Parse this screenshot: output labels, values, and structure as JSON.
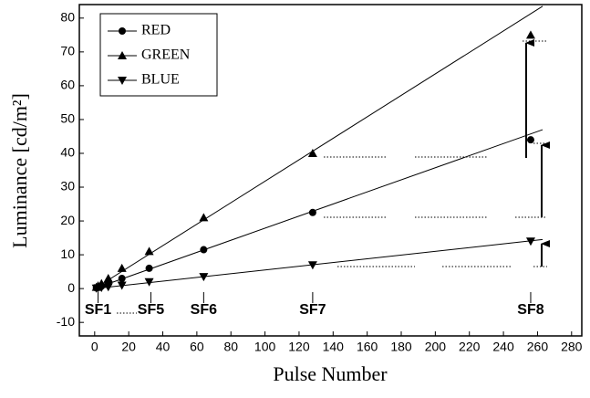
{
  "chart_data": {
    "type": "scatter",
    "x_label": "Pulse Number",
    "y_label": "Luminance [cd/m²]",
    "x": [
      1,
      2,
      4,
      8,
      16,
      32,
      64,
      128,
      256
    ],
    "series": [
      {
        "name": "RED",
        "color": "#000000",
        "marker": "circle",
        "values": [
          0.2,
          0.4,
          0.7,
          1.4,
          3,
          6,
          11.5,
          22.5,
          44
        ]
      },
      {
        "name": "GREEN",
        "color": "#000000",
        "marker": "triangle-up",
        "values": [
          0.4,
          0.8,
          1.5,
          3,
          6,
          11,
          21,
          40,
          75
        ]
      },
      {
        "name": "BLUE",
        "color": "#000000",
        "marker": "triangle-down",
        "values": [
          0.1,
          0.2,
          0.3,
          0.5,
          1,
          2,
          3.5,
          7,
          14
        ]
      }
    ],
    "fit_lines": {
      "x": [
        0,
        263
      ],
      "series": [
        {
          "values": [
            0,
            47
          ]
        },
        {
          "values": [
            0,
            83.5
          ]
        },
        {
          "values": [
            0,
            14.5
          ]
        }
      ]
    },
    "annotations": [
      {
        "text": "SF1",
        "x": 2
      },
      {
        "text": "SF5",
        "x": 33
      },
      {
        "text": "SF6",
        "x": 64
      },
      {
        "text": "SF7",
        "x": 128
      },
      {
        "text": "SF8",
        "x": 256
      }
    ],
    "xlim": [
      -9,
      286
    ],
    "ylim": [
      -14,
      84
    ],
    "xticks": [
      0,
      20,
      40,
      60,
      80,
      100,
      120,
      140,
      160,
      180,
      200,
      220,
      240,
      260,
      280
    ],
    "yticks": [
      -10,
      0,
      10,
      20,
      30,
      40,
      50,
      60,
      70,
      80
    ],
    "legend": "upper-left",
    "grid": false
  }
}
